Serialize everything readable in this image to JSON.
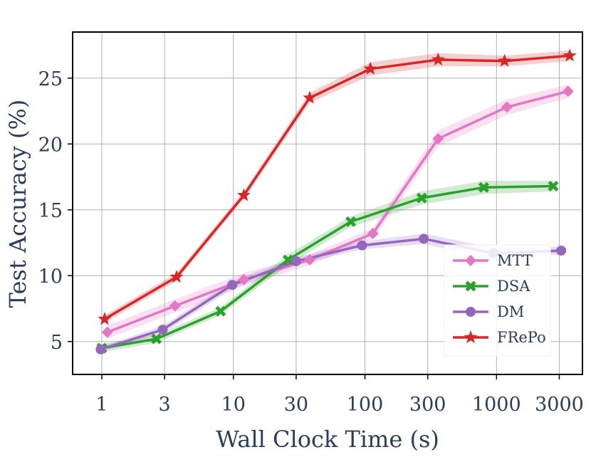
{
  "chart_data": {
    "type": "line",
    "xlabel": "Wall Clock Time (s)",
    "ylabel": "Test Accuracy (%)",
    "x_scale": "log",
    "xlim": [
      0.6,
      4500
    ],
    "ylim": [
      2.5,
      28.5
    ],
    "x_ticks": [
      {
        "value": 1,
        "label": "1"
      },
      {
        "value": 3,
        "label": "3"
      },
      {
        "value": 10,
        "label": "10"
      },
      {
        "value": 30,
        "label": "30"
      },
      {
        "value": 100,
        "label": "100"
      },
      {
        "value": 300,
        "label": "300"
      },
      {
        "value": 1000,
        "label": "1000"
      },
      {
        "value": 3000,
        "label": "3000"
      }
    ],
    "y_ticks": [
      {
        "value": 5,
        "label": "5"
      },
      {
        "value": 10,
        "label": "10"
      },
      {
        "value": 15,
        "label": "15"
      },
      {
        "value": 20,
        "label": "20"
      },
      {
        "value": 25,
        "label": "25"
      }
    ],
    "grid": true,
    "legend_position": "lower-right",
    "series": [
      {
        "name": "MTT",
        "color": "#e377c2",
        "marker": "diamond",
        "points": [
          [
            1.1,
            5.7
          ],
          [
            3.6,
            7.7
          ],
          [
            12,
            9.7
          ],
          [
            38,
            11.2
          ],
          [
            115,
            13.2
          ],
          [
            360,
            20.4
          ],
          [
            1200,
            22.8
          ],
          [
            3500,
            24.0
          ]
        ],
        "band": [
          0.5,
          0.5,
          0.5,
          0.4,
          0.4,
          0.6,
          0.6,
          0.5
        ]
      },
      {
        "name": "DSA",
        "color": "#2ca02c",
        "marker": "x",
        "points": [
          [
            1,
            4.5
          ],
          [
            2.6,
            5.2
          ],
          [
            8,
            7.3
          ],
          [
            26,
            11.2
          ],
          [
            78,
            14.1
          ],
          [
            270,
            15.9
          ],
          [
            800,
            16.7
          ],
          [
            2700,
            16.8
          ]
        ],
        "band": [
          0.3,
          0.3,
          0.3,
          0.4,
          0.4,
          0.5,
          0.5,
          0.4
        ]
      },
      {
        "name": "DM",
        "color": "#9467bd",
        "marker": "circle",
        "points": [
          [
            0.98,
            4.4
          ],
          [
            2.9,
            5.9
          ],
          [
            9.8,
            9.3
          ],
          [
            30,
            11.1
          ],
          [
            95,
            12.3
          ],
          [
            280,
            12.8
          ],
          [
            950,
            11.7
          ],
          [
            3100,
            11.9
          ]
        ],
        "band": [
          0.2,
          0.3,
          0.3,
          0.3,
          0.3,
          0.4,
          0.4,
          0.3
        ]
      },
      {
        "name": "FRePo",
        "color": "#d62728",
        "marker": "star",
        "points": [
          [
            1.05,
            6.7
          ],
          [
            3.7,
            9.9
          ],
          [
            12,
            16.1
          ],
          [
            38,
            23.5
          ],
          [
            110,
            25.7
          ],
          [
            360,
            26.4
          ],
          [
            1150,
            26.3
          ],
          [
            3600,
            26.7
          ]
        ],
        "band": [
          0.3,
          0.3,
          0.3,
          0.4,
          0.5,
          0.5,
          0.4,
          0.4
        ]
      }
    ]
  }
}
